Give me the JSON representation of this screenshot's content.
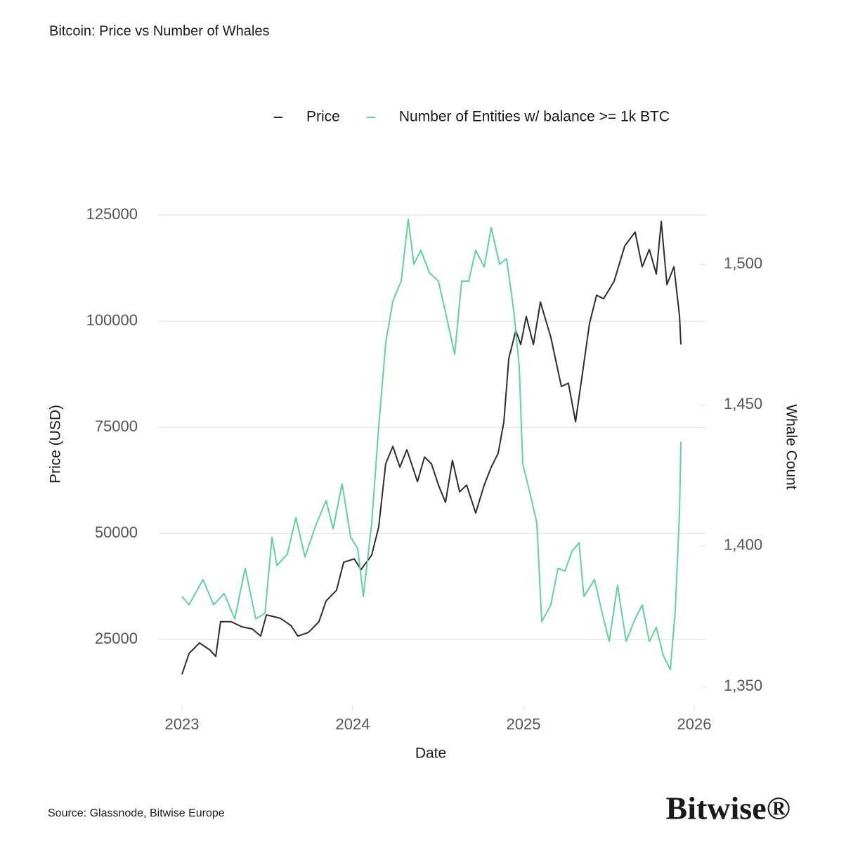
{
  "chart_data": {
    "type": "line",
    "title": "Bitcoin: Price vs Number of Whales",
    "xlabel": "Date",
    "ylabel": "Price (USD)",
    "y2label": "Whale Count",
    "source": "Source: Glassnode, Bitwise Europe",
    "brand": "Bitwise®",
    "xlim": [
      2022.86,
      2026.07
    ],
    "xticks": [
      2023,
      2024,
      2025,
      2026
    ],
    "ylim": [
      9300,
      126000
    ],
    "yticks": [
      25000,
      50000,
      75000,
      100000,
      125000
    ],
    "y2lim": [
      1343,
      1519
    ],
    "y2ticks": [
      {
        "value": 1350,
        "label": "1,350"
      },
      {
        "value": 1400,
        "label": "1,400"
      },
      {
        "value": 1450,
        "label": "1,450"
      },
      {
        "value": 1500,
        "label": "1,500"
      }
    ],
    "grid": true,
    "legend": "top",
    "series": [
      {
        "name": "Price",
        "color": "#2b2d33",
        "axis": "y",
        "x": [
          2023.0,
          2023.041,
          2023.103,
          2023.165,
          2023.198,
          2023.226,
          2023.288,
          2023.35,
          2023.412,
          2023.461,
          2023.494,
          2023.576,
          2023.638,
          2023.679,
          2023.741,
          2023.802,
          2023.844,
          2023.905,
          2023.947,
          2024.008,
          2024.049,
          2024.111,
          2024.152,
          2024.193,
          2024.235,
          2024.276,
          2024.317,
          2024.379,
          2024.42,
          2024.461,
          2024.502,
          2024.543,
          2024.584,
          2024.626,
          2024.667,
          2024.72,
          2024.77,
          2024.811,
          2024.852,
          2024.885,
          2024.914,
          2024.955,
          2024.984,
          2025.016,
          2025.058,
          2025.099,
          2025.16,
          2025.222,
          2025.263,
          2025.305,
          2025.346,
          2025.387,
          2025.428,
          2025.469,
          2025.531,
          2025.593,
          2025.654,
          2025.695,
          2025.737,
          2025.778,
          2025.807,
          2025.84,
          2025.881,
          2025.914,
          2025.922
        ],
        "values": [
          16800,
          21700,
          24200,
          22500,
          21000,
          29200,
          29200,
          28000,
          27500,
          25800,
          30800,
          30000,
          28300,
          25800,
          26700,
          29200,
          34100,
          36600,
          43200,
          44000,
          41500,
          44900,
          51500,
          66400,
          70500,
          65600,
          69700,
          62200,
          68000,
          66400,
          61400,
          57300,
          67200,
          59800,
          61400,
          54800,
          61400,
          65600,
          68900,
          76300,
          91200,
          97800,
          94500,
          101100,
          94500,
          104500,
          96200,
          84600,
          85400,
          76300,
          87900,
          99500,
          106100,
          105300,
          109400,
          117700,
          121000,
          112800,
          116900,
          111100,
          123500,
          108600,
          112800,
          101200,
          94500
        ]
      },
      {
        "name": "Number of Entities w/ balance >= 1k BTC",
        "color": "#5fd39a",
        "axis": "y2",
        "x": [
          2023.0,
          2023.041,
          2023.123,
          2023.185,
          2023.247,
          2023.309,
          2023.37,
          2023.432,
          2023.486,
          2023.527,
          2023.556,
          2023.617,
          2023.667,
          2023.72,
          2023.782,
          2023.844,
          2023.885,
          2023.938,
          2023.988,
          2024.029,
          2024.062,
          2024.111,
          2024.152,
          2024.193,
          2024.235,
          2024.284,
          2024.325,
          2024.358,
          2024.399,
          2024.449,
          2024.502,
          2024.543,
          2024.597,
          2024.638,
          2024.679,
          2024.72,
          2024.77,
          2024.811,
          2024.86,
          2024.901,
          2024.942,
          2024.975,
          2024.996,
          2025.037,
          2025.078,
          2025.107,
          2025.16,
          2025.202,
          2025.243,
          2025.284,
          2025.325,
          2025.354,
          2025.416,
          2025.469,
          2025.502,
          2025.551,
          2025.601,
          2025.654,
          2025.695,
          2025.737,
          2025.778,
          2025.819,
          2025.86,
          2025.889,
          2025.914,
          2025.922
        ],
        "values": [
          1382,
          1379,
          1388,
          1379,
          1383,
          1374,
          1392,
          1374,
          1376,
          1403,
          1393,
          1397,
          1410,
          1396,
          1407,
          1416,
          1406,
          1422,
          1403,
          1399,
          1382,
          1408,
          1442,
          1472,
          1487,
          1494,
          1516,
          1500,
          1505,
          1497,
          1494,
          1483,
          1468,
          1494,
          1494,
          1505,
          1499,
          1513,
          1500,
          1502,
          1484,
          1464,
          1429,
          1419,
          1408,
          1373,
          1379,
          1392,
          1391,
          1398,
          1401,
          1382,
          1388,
          1374,
          1366,
          1386,
          1366,
          1374,
          1379,
          1366,
          1371,
          1361,
          1356,
          1377,
          1412,
          1437
        ]
      }
    ]
  }
}
